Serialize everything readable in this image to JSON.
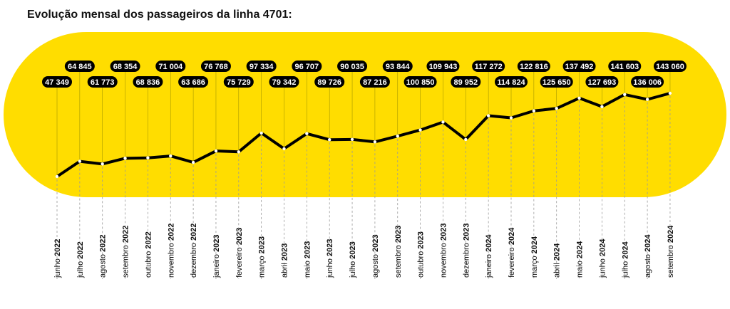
{
  "chart_data": {
    "type": "line",
    "title": "Evolução mensal dos passageiros da linha 4701:",
    "xlabel": "",
    "ylabel": "",
    "ylim": [
      40000,
      150000
    ],
    "colors": {
      "background_band": "#FFDD00",
      "line": "#000000",
      "label_bg": "#000000",
      "label_text": "#FFFFFF",
      "guide": "#9a9a9a"
    },
    "categories": [
      {
        "month": "junho",
        "year": "2022"
      },
      {
        "month": "julho",
        "year": "2022"
      },
      {
        "month": "agosto",
        "year": "2022"
      },
      {
        "month": "setembro",
        "year": "2022"
      },
      {
        "month": "outubro",
        "year": "2022"
      },
      {
        "month": "novembro",
        "year": "2022"
      },
      {
        "month": "dezembro",
        "year": "2022"
      },
      {
        "month": "janeiro",
        "year": "2023"
      },
      {
        "month": "fevereiro",
        "year": "2023"
      },
      {
        "month": "março",
        "year": "2023"
      },
      {
        "month": "abril",
        "year": "2023"
      },
      {
        "month": "maio",
        "year": "2023"
      },
      {
        "month": "junho",
        "year": "2023"
      },
      {
        "month": "julho",
        "year": "2023"
      },
      {
        "month": "agosto",
        "year": "2023"
      },
      {
        "month": "setembro",
        "year": "2023"
      },
      {
        "month": "outubro",
        "year": "2023"
      },
      {
        "month": "novembro",
        "year": "2023"
      },
      {
        "month": "dezembro",
        "year": "2023"
      },
      {
        "month": "janeiro",
        "year": "2024"
      },
      {
        "month": "fevereiro",
        "year": "2024"
      },
      {
        "month": "março",
        "year": "2024"
      },
      {
        "month": "abril",
        "year": "2024"
      },
      {
        "month": "maio",
        "year": "2024"
      },
      {
        "month": "junho",
        "year": "2024"
      },
      {
        "month": "julho",
        "year": "2024"
      },
      {
        "month": "agosto",
        "year": "2024"
      },
      {
        "month": "setembro",
        "year": "2024"
      }
    ],
    "series": [
      {
        "name": "Passageiros",
        "values": [
          47349,
          64845,
          61773,
          68354,
          68836,
          71004,
          63686,
          76768,
          75729,
          97334,
          79342,
          96707,
          89726,
          90035,
          87216,
          93844,
          100850,
          109943,
          89952,
          117272,
          114824,
          122816,
          125650,
          137492,
          127693,
          141603,
          136006,
          143060
        ],
        "labels": [
          "47 349",
          "64 845",
          "61 773",
          "68 354",
          "68 836",
          "71 004",
          "63 686",
          "76 768",
          "75 729",
          "97 334",
          "79 342",
          "96 707",
          "89 726",
          "90 035",
          "87 216",
          "93 844",
          "100 850",
          "109 943",
          "89 952",
          "117 272",
          "114 824",
          "122 816",
          "125 650",
          "137 492",
          "127 693",
          "141 603",
          "136 006",
          "143 060"
        ]
      }
    ]
  }
}
